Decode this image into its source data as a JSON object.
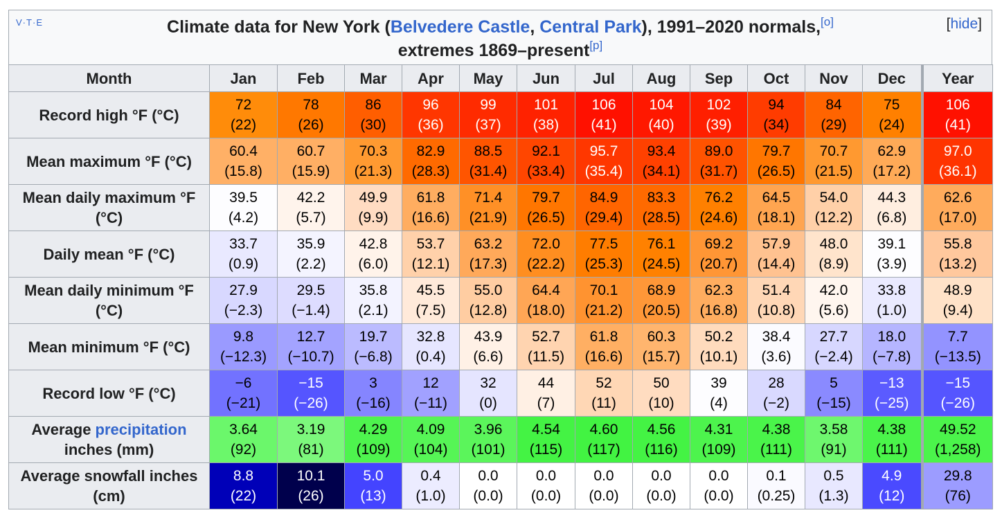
{
  "nav": [
    "V",
    "·",
    "T",
    "·",
    "E"
  ],
  "hide": [
    "[",
    "hide",
    "]"
  ],
  "caption": [
    "Climate data for New York (",
    "Belvedere Castle",
    ", ",
    "Central Park",
    "), 1991–2020 normals,",
    "[o]",
    "extremes 1869–present",
    "[p]"
  ],
  "table": {
    "header": [
      "Month",
      "Jan",
      "Feb",
      "Mar",
      "Apr",
      "May",
      "Jun",
      "Jul",
      "Aug",
      "Sep",
      "Oct",
      "Nov",
      "Dec",
      "Year"
    ],
    "rows": [
      {
        "label": [
          "Record high °F (°C)"
        ],
        "cells": [
          [
            "72",
            "(22)"
          ],
          [
            "78",
            "(26)"
          ],
          [
            "86",
            "(30)"
          ],
          [
            "96",
            "(36)"
          ],
          [
            "99",
            "(37)"
          ],
          [
            "101",
            "(38)"
          ],
          [
            "106",
            "(41)"
          ],
          [
            "104",
            "(40)"
          ],
          [
            "102",
            "(39)"
          ],
          [
            "94",
            "(34)"
          ],
          [
            "84",
            "(29)"
          ],
          [
            "75",
            "(24)"
          ],
          [
            "106",
            "(41)"
          ]
        ],
        "colors": [
          "#ff8c0a",
          "#ff7800",
          "#ff5e00",
          "#ff3600",
          "#ff2b00",
          "#ff2200",
          "#ff1100",
          "#ff1800",
          "#ff1f00",
          "#ff3c00",
          "#ff6400",
          "#ff8000",
          "#ff1100"
        ]
      },
      {
        "label": [
          "Mean maximum °F (°C)"
        ],
        "cells": [
          [
            "60.4",
            "(15.8)"
          ],
          [
            "60.7",
            "(15.9)"
          ],
          [
            "70.3",
            "(21.3)"
          ],
          [
            "82.9",
            "(28.3)"
          ],
          [
            "88.5",
            "(31.4)"
          ],
          [
            "92.1",
            "(33.4)"
          ],
          [
            "95.7",
            "(35.4)"
          ],
          [
            "93.4",
            "(34.1)"
          ],
          [
            "89.0",
            "(31.7)"
          ],
          [
            "79.7",
            "(26.5)"
          ],
          [
            "70.7",
            "(21.5)"
          ],
          [
            "62.9",
            "(17.2)"
          ],
          [
            "97.0",
            "(36.1)"
          ]
        ],
        "colors": [
          "#ffb066",
          "#ffaf64",
          "#ff9a31",
          "#ff6a00",
          "#ff5500",
          "#ff4600",
          "#ff3700",
          "#ff4100",
          "#ff5300",
          "#ff7600",
          "#ff9930",
          "#ffaa57",
          "#ff3400"
        ]
      },
      {
        "label": [
          "Mean daily maximum °F (°C)"
        ],
        "cells": [
          [
            "39.5",
            "(4.2)"
          ],
          [
            "42.2",
            "(5.7)"
          ],
          [
            "49.9",
            "(9.9)"
          ],
          [
            "61.8",
            "(16.6)"
          ],
          [
            "71.4",
            "(21.9)"
          ],
          [
            "79.7",
            "(26.5)"
          ],
          [
            "84.9",
            "(29.4)"
          ],
          [
            "83.3",
            "(28.5)"
          ],
          [
            "76.2",
            "(24.6)"
          ],
          [
            "64.5",
            "(18.1)"
          ],
          [
            "54.0",
            "(12.2)"
          ],
          [
            "44.3",
            "(6.8)"
          ],
          [
            "62.6",
            "(17.0)"
          ]
        ],
        "colors": [
          "#fdfdff",
          "#fff4ec",
          "#ffdcc2",
          "#ffad60",
          "#ff9026",
          "#ff7600",
          "#ff6500",
          "#ff6a00",
          "#ff8000",
          "#ffa550",
          "#ffd0a8",
          "#ffeee0",
          "#ffab5c"
        ]
      },
      {
        "label": [
          "Daily mean °F (°C)"
        ],
        "cells": [
          [
            "33.7",
            "(0.9)"
          ],
          [
            "35.9",
            "(2.2)"
          ],
          [
            "42.8",
            "(6.0)"
          ],
          [
            "53.7",
            "(12.1)"
          ],
          [
            "63.2",
            "(17.3)"
          ],
          [
            "72.0",
            "(22.2)"
          ],
          [
            "77.5",
            "(25.3)"
          ],
          [
            "76.1",
            "(24.5)"
          ],
          [
            "69.2",
            "(20.7)"
          ],
          [
            "57.9",
            "(14.4)"
          ],
          [
            "48.0",
            "(8.9)"
          ],
          [
            "39.1",
            "(3.9)"
          ],
          [
            "55.8",
            "(13.2)"
          ]
        ],
        "colors": [
          "#e9e9ff",
          "#f4f4ff",
          "#fff3ea",
          "#ffd1aa",
          "#ffa95a",
          "#ff8e20",
          "#ff7d00",
          "#ff8100",
          "#ff9635",
          "#ffc290",
          "#ffe4cc",
          "#fdfdff",
          "#ffc89d"
        ]
      },
      {
        "label": [
          "Mean daily minimum °F (°C)"
        ],
        "cells": [
          [
            "27.9",
            "(−2.3)"
          ],
          [
            "29.5",
            "(−1.4)"
          ],
          [
            "35.8",
            "(2.1)"
          ],
          [
            "45.5",
            "(7.5)"
          ],
          [
            "55.0",
            "(12.8)"
          ],
          [
            "64.4",
            "(18.0)"
          ],
          [
            "70.1",
            "(21.2)"
          ],
          [
            "68.9",
            "(20.5)"
          ],
          [
            "62.3",
            "(16.8)"
          ],
          [
            "51.4",
            "(10.8)"
          ],
          [
            "42.0",
            "(5.6)"
          ],
          [
            "33.8",
            "(1.0)"
          ],
          [
            "48.9",
            "(9.4)"
          ]
        ],
        "colors": [
          "#d8d8ff",
          "#dddcff",
          "#f3f3ff",
          "#ffeada",
          "#ffcda2",
          "#ffa655",
          "#ff9330",
          "#ff9738",
          "#ffad5f",
          "#ffd7b6",
          "#fff6ef",
          "#eaeaff",
          "#ffe2c8"
        ]
      },
      {
        "label": [
          "Mean minimum °F (°C)"
        ],
        "cells": [
          [
            "9.8",
            "(−12.3)"
          ],
          [
            "12.7",
            "(−10.7)"
          ],
          [
            "19.7",
            "(−6.8)"
          ],
          [
            "32.8",
            "(0.4)"
          ],
          [
            "43.9",
            "(6.6)"
          ],
          [
            "52.7",
            "(11.5)"
          ],
          [
            "61.8",
            "(16.6)"
          ],
          [
            "60.3",
            "(15.7)"
          ],
          [
            "50.2",
            "(10.1)"
          ],
          [
            "38.4",
            "(3.6)"
          ],
          [
            "27.7",
            "(−2.4)"
          ],
          [
            "18.0",
            "(−7.8)"
          ],
          [
            "7.7",
            "(−13.5)"
          ]
        ],
        "colors": [
          "#9a9aff",
          "#a3a3ff",
          "#bbbbff",
          "#e6e6ff",
          "#fff1e6",
          "#ffd4b0",
          "#ffaf63",
          "#ffb56e",
          "#ffdbbd",
          "#fbfbff",
          "#d7d7ff",
          "#b5b5ff",
          "#9393ff"
        ]
      },
      {
        "label": [
          "Record low °F (°C)"
        ],
        "cells": [
          [
            "−6",
            "(−21)"
          ],
          [
            "−15",
            "(−26)"
          ],
          [
            "3",
            "(−16)"
          ],
          [
            "12",
            "(−11)"
          ],
          [
            "32",
            "(0)"
          ],
          [
            "44",
            "(7)"
          ],
          [
            "52",
            "(11)"
          ],
          [
            "50",
            "(10)"
          ],
          [
            "39",
            "(4)"
          ],
          [
            "28",
            "(−2)"
          ],
          [
            "5",
            "(−15)"
          ],
          [
            "−13",
            "(−25)"
          ],
          [
            "−15",
            "(−26)"
          ]
        ],
        "colors": [
          "#7272ff",
          "#5555ff",
          "#8585ff",
          "#a1a1ff",
          "#e5e5ff",
          "#fff0e4",
          "#ffd7b5",
          "#ffdcc0",
          "#fdfdff",
          "#d9d9ff",
          "#8a8aff",
          "#5b5bff",
          "#5555ff"
        ]
      },
      {
        "label": [
          "Average ",
          "precipitation",
          " inches (mm)"
        ],
        "cells": [
          [
            "3.64",
            "(92)"
          ],
          [
            "3.19",
            "(81)"
          ],
          [
            "4.29",
            "(109)"
          ],
          [
            "4.09",
            "(104)"
          ],
          [
            "3.96",
            "(101)"
          ],
          [
            "4.54",
            "(115)"
          ],
          [
            "4.60",
            "(117)"
          ],
          [
            "4.56",
            "(116)"
          ],
          [
            "4.31",
            "(109)"
          ],
          [
            "4.38",
            "(111)"
          ],
          [
            "3.58",
            "(91)"
          ],
          [
            "4.38",
            "(111)"
          ],
          [
            "49.52",
            "(1,258)"
          ]
        ],
        "colors": [
          "#6bf76b",
          "#7cf87c",
          "#4ef44e",
          "#56f556",
          "#5bf55b",
          "#44f344",
          "#42f342",
          "#44f344",
          "#4df44d",
          "#4af44a",
          "#6ef76e",
          "#4af44a",
          "#4bf44b"
        ]
      },
      {
        "label": [
          "Average snowfall inches (cm)"
        ],
        "cells": [
          [
            "8.8",
            "(22)"
          ],
          [
            "10.1",
            "(26)"
          ],
          [
            "5.0",
            "(13)"
          ],
          [
            "0.4",
            "(1.0)"
          ],
          [
            "0.0",
            "(0.0)"
          ],
          [
            "0.0",
            "(0.0)"
          ],
          [
            "0.0",
            "(0.0)"
          ],
          [
            "0.0",
            "(0.0)"
          ],
          [
            "0.0",
            "(0.0)"
          ],
          [
            "0.1",
            "(0.25)"
          ],
          [
            "0.5",
            "(1.3)"
          ],
          [
            "4.9",
            "(12)"
          ],
          [
            "29.8",
            "(76)"
          ]
        ],
        "colors": [
          "#0000b8",
          "#00004c",
          "#4444ff",
          "#ececff",
          "#ffffff",
          "#ffffff",
          "#ffffff",
          "#ffffff",
          "#ffffff",
          "#fafaff",
          "#e8e8ff",
          "#4a4aff",
          "#9c9cff"
        ]
      }
    ]
  }
}
